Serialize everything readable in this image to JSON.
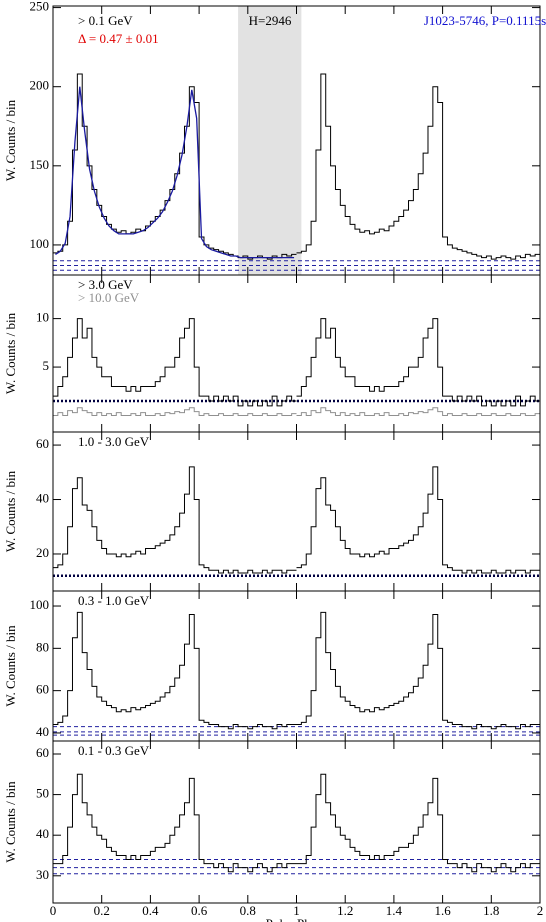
{
  "chart_data": [
    {
      "type": "histogram",
      "xlim": [
        0,
        2
      ],
      "ylim": [
        81,
        251
      ],
      "yticks": [
        100,
        150,
        200,
        250
      ],
      "ylabel": "W. Counts / bin",
      "bins": [
        0,
        0.02,
        0.04,
        0.06,
        0.08,
        0.1,
        0.12,
        0.14,
        0.16,
        0.18,
        0.2,
        0.22,
        0.24,
        0.26,
        0.28,
        0.3,
        0.32,
        0.34,
        0.36,
        0.38,
        0.4,
        0.42,
        0.44,
        0.46,
        0.48,
        0.5,
        0.52,
        0.54,
        0.56,
        0.58,
        0.6,
        0.62,
        0.64,
        0.66,
        0.68,
        0.7,
        0.72,
        0.74,
        0.76,
        0.78,
        0.8,
        0.82,
        0.84,
        0.86,
        0.88,
        0.9,
        0.92,
        0.94,
        0.96,
        0.98,
        1
      ],
      "shade": [
        0.76,
        1.02
      ],
      "hlines": [
        90,
        87,
        84
      ],
      "hline_style": "dashed",
      "hline_color": "#2020a0",
      "annotations": [
        {
          "text": "> 0.1 GeV",
          "color": "#000000"
        },
        {
          "text": "Δ = 0.47 ± 0.01",
          "color": "#e00000"
        },
        {
          "text": "H=2946",
          "color": "#000000"
        },
        {
          "text": "J1023-5746, P=0.1115s",
          "color": "#1010d0"
        }
      ],
      "series": [
        {
          "style": "step",
          "color": "#000000",
          "values": [
            95,
            96,
            100,
            115,
            160,
            208,
            175,
            150,
            135,
            125,
            118,
            113,
            110,
            108,
            109,
            107,
            108,
            110,
            109,
            112,
            115,
            118,
            122,
            128,
            135,
            145,
            158,
            175,
            200,
            190,
            105,
            100,
            98,
            97,
            96,
            95,
            94,
            93,
            92,
            93,
            91,
            92,
            93,
            92,
            91,
            93,
            92,
            94,
            93,
            94
          ]
        },
        {
          "style": "line",
          "color": "#1a1aa0",
          "values": [
            94,
            96,
            101,
            118,
            165,
            200,
            172,
            148,
            134,
            124,
            117,
            112,
            109,
            107,
            107,
            107,
            107,
            108,
            109,
            111,
            114,
            117,
            121,
            127,
            134,
            144,
            157,
            175,
            198,
            180,
            104,
            99,
            97,
            96,
            95,
            94,
            93,
            93,
            92,
            92,
            92,
            92,
            92,
            92,
            92,
            92,
            92,
            92,
            92,
            92
          ]
        }
      ]
    },
    {
      "type": "histogram",
      "xlim": [
        0,
        2
      ],
      "ylim": [
        -1.7,
        14.5
      ],
      "yticks": [
        5,
        10
      ],
      "ylabel": "W. Counts / bin",
      "bins": [
        0,
        0.02,
        0.04,
        0.06,
        0.08,
        0.1,
        0.12,
        0.14,
        0.16,
        0.18,
        0.2,
        0.22,
        0.24,
        0.26,
        0.28,
        0.3,
        0.32,
        0.34,
        0.36,
        0.38,
        0.4,
        0.42,
        0.44,
        0.46,
        0.48,
        0.5,
        0.52,
        0.54,
        0.56,
        0.58,
        0.6,
        0.62,
        0.64,
        0.66,
        0.68,
        0.7,
        0.72,
        0.74,
        0.76,
        0.78,
        0.8,
        0.82,
        0.84,
        0.86,
        0.88,
        0.9,
        0.92,
        0.94,
        0.96,
        0.98,
        1
      ],
      "hlines": [
        1.5
      ],
      "hline_style": "dotted",
      "hline_color": "#000040",
      "annotations": [
        {
          "text": "> 3.0 GeV",
          "color": "#000000"
        },
        {
          "text": "> 10.0 GeV",
          "color": "#909090"
        }
      ],
      "series": [
        {
          "style": "step",
          "color": "#909090",
          "values": [
            0,
            0.3,
            0,
            0.5,
            0.3,
            0.8,
            0.5,
            0.3,
            0,
            0.3,
            0,
            0.2,
            0,
            0.3,
            0,
            0,
            0.2,
            0,
            0.3,
            0,
            0,
            0.2,
            0,
            0.3,
            0.2,
            0.4,
            0.3,
            0.6,
            0.8,
            0.4,
            0,
            0.2,
            0,
            0,
            0.2,
            0,
            0,
            0.2,
            0,
            0,
            0.2,
            0,
            0,
            0.2,
            0,
            0,
            0.2,
            0,
            0,
            0.2
          ]
        },
        {
          "style": "step",
          "color": "#000000",
          "values": [
            2,
            3,
            4,
            6,
            8,
            10,
            8,
            9,
            6,
            5,
            4,
            4,
            3,
            3,
            3,
            2.5,
            3,
            2.5,
            3,
            3,
            3,
            3.5,
            4,
            5,
            5,
            6,
            8,
            9,
            10,
            5,
            2,
            2,
            1.5,
            2,
            1.5,
            2,
            1.5,
            2,
            1,
            1.5,
            1,
            1.5,
            1,
            1.5,
            1,
            2,
            1,
            1.5,
            2,
            1.5
          ]
        }
      ]
    },
    {
      "type": "histogram",
      "xlim": [
        0,
        2
      ],
      "ylim": [
        6.4,
        64.8
      ],
      "yticks": [
        20,
        40,
        60
      ],
      "ylabel": "W. Counts / bin",
      "bins": [
        0,
        0.02,
        0.04,
        0.06,
        0.08,
        0.1,
        0.12,
        0.14,
        0.16,
        0.18,
        0.2,
        0.22,
        0.24,
        0.26,
        0.28,
        0.3,
        0.32,
        0.34,
        0.36,
        0.38,
        0.4,
        0.42,
        0.44,
        0.46,
        0.48,
        0.5,
        0.52,
        0.54,
        0.56,
        0.58,
        0.6,
        0.62,
        0.64,
        0.66,
        0.68,
        0.7,
        0.72,
        0.74,
        0.76,
        0.78,
        0.8,
        0.82,
        0.84,
        0.86,
        0.88,
        0.9,
        0.92,
        0.94,
        0.96,
        0.98,
        1
      ],
      "hlines": [
        12
      ],
      "hline_style": "dotted",
      "hline_color": "#000040",
      "annotations": [
        {
          "text": "1.0 - 3.0 GeV",
          "color": "#000000"
        }
      ],
      "series": [
        {
          "style": "step",
          "color": "#000000",
          "values": [
            15,
            16,
            20,
            30,
            44,
            48,
            38,
            36,
            30,
            25,
            22,
            20,
            20,
            19,
            20,
            19,
            20,
            21,
            20,
            22,
            22,
            23,
            24,
            25,
            27,
            30,
            35,
            42,
            52,
            40,
            16,
            15,
            14,
            14,
            13,
            14,
            13,
            14,
            13,
            13,
            14,
            13,
            13,
            14,
            13,
            14,
            14,
            13,
            14,
            14
          ]
        }
      ]
    },
    {
      "type": "histogram",
      "xlim": [
        0,
        2
      ],
      "ylim": [
        36.2,
        107.1
      ],
      "yticks": [
        40,
        60,
        80,
        100
      ],
      "ylabel": "W. Counts / bin",
      "bins": [
        0,
        0.02,
        0.04,
        0.06,
        0.08,
        0.1,
        0.12,
        0.14,
        0.16,
        0.18,
        0.2,
        0.22,
        0.24,
        0.26,
        0.28,
        0.3,
        0.32,
        0.34,
        0.36,
        0.38,
        0.4,
        0.42,
        0.44,
        0.46,
        0.48,
        0.5,
        0.52,
        0.54,
        0.56,
        0.58,
        0.6,
        0.62,
        0.64,
        0.66,
        0.68,
        0.7,
        0.72,
        0.74,
        0.76,
        0.78,
        0.8,
        0.82,
        0.84,
        0.86,
        0.88,
        0.9,
        0.92,
        0.94,
        0.96,
        0.98,
        1
      ],
      "hlines": [
        43,
        40.5,
        39
      ],
      "hline_style": "dashed",
      "hline_color": "#2020a0",
      "annotations": [
        {
          "text": "0.3 - 1.0 GeV",
          "color": "#000000"
        }
      ],
      "series": [
        {
          "style": "step",
          "color": "#000000",
          "values": [
            44,
            45,
            48,
            60,
            85,
            97,
            78,
            70,
            62,
            57,
            55,
            53,
            52,
            50,
            51,
            50,
            52,
            51,
            52,
            53,
            54,
            55,
            57,
            59,
            62,
            66,
            72,
            82,
            96,
            80,
            46,
            45,
            44,
            44,
            43,
            43,
            42,
            44,
            43,
            43,
            42,
            43,
            44,
            43,
            43,
            42,
            44,
            43,
            44,
            44
          ]
        }
      ]
    },
    {
      "type": "histogram",
      "xlim": [
        0,
        2
      ],
      "ylim": [
        23.3,
        63.2
      ],
      "yticks": [
        30,
        40,
        50,
        60
      ],
      "ylabel": "W. Counts / bin",
      "xlabel": "Pulse Phase",
      "xticks": [
        0,
        0.2,
        0.4,
        0.6,
        0.8,
        1,
        1.2,
        1.4,
        1.6,
        1.8,
        2
      ],
      "bins": [
        0,
        0.02,
        0.04,
        0.06,
        0.08,
        0.1,
        0.12,
        0.14,
        0.16,
        0.18,
        0.2,
        0.22,
        0.24,
        0.26,
        0.28,
        0.3,
        0.32,
        0.34,
        0.36,
        0.38,
        0.4,
        0.42,
        0.44,
        0.46,
        0.48,
        0.5,
        0.52,
        0.54,
        0.56,
        0.58,
        0.6,
        0.62,
        0.64,
        0.66,
        0.68,
        0.7,
        0.72,
        0.74,
        0.76,
        0.78,
        0.8,
        0.82,
        0.84,
        0.86,
        0.88,
        0.9,
        0.92,
        0.94,
        0.96,
        0.98,
        1
      ],
      "hlines": [
        34,
        32,
        30.5
      ],
      "hline_style": "dashed",
      "hline_color": "#2020a0",
      "annotations": [
        {
          "text": "0.1 - 0.3 GeV",
          "color": "#000000"
        }
      ],
      "series": [
        {
          "style": "step",
          "color": "#000000",
          "values": [
            33,
            33,
            35,
            42,
            50,
            55,
            48,
            45,
            42,
            40,
            39,
            37,
            36,
            35,
            35,
            34,
            35,
            34,
            35,
            35,
            36,
            37,
            37,
            38,
            40,
            42,
            45,
            48,
            54,
            45,
            34,
            33,
            33,
            32,
            33,
            32,
            31,
            33,
            32,
            32,
            31,
            32,
            33,
            32,
            31,
            32,
            33,
            32,
            33,
            33
          ]
        }
      ]
    }
  ]
}
